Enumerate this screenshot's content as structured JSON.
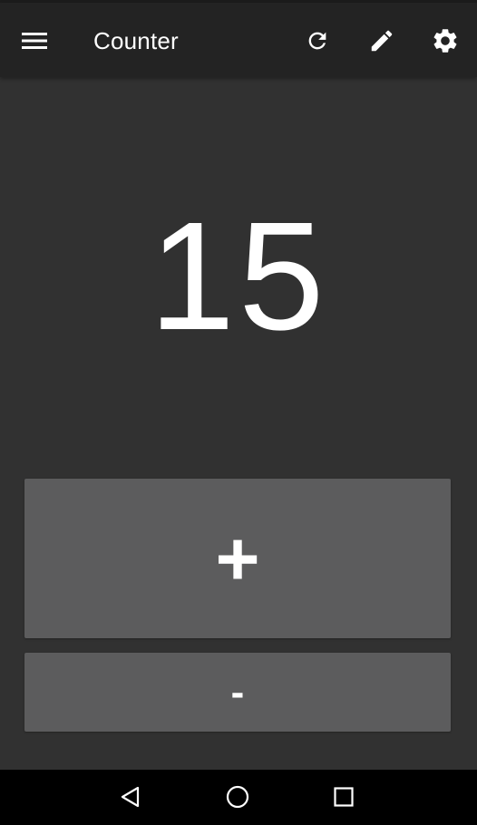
{
  "app_bar": {
    "title": "Counter",
    "menu_icon": "menu-icon",
    "actions": [
      {
        "name": "reset",
        "icon": "refresh-icon"
      },
      {
        "name": "edit",
        "icon": "pencil-icon"
      },
      {
        "name": "settings",
        "icon": "gear-icon"
      }
    ]
  },
  "counter": {
    "value": "15"
  },
  "buttons": {
    "increment_label": "+",
    "decrement_label": "-"
  },
  "navigation": {
    "back_icon": "triangle-back-icon",
    "home_icon": "circle-home-icon",
    "recents_icon": "square-recents-icon"
  },
  "colors": {
    "background": "#313131",
    "app_bar": "#232323",
    "button": "#5c5c5d",
    "nav_bar": "#000000",
    "text": "#ffffff"
  }
}
